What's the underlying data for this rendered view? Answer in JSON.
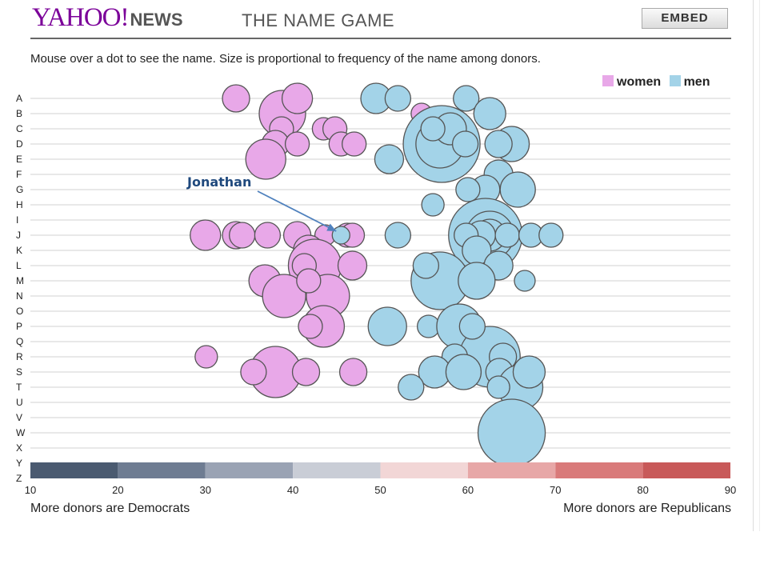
{
  "header": {
    "logo_text": "YAHOO!",
    "logo_section": "NEWS",
    "title": "THE NAME GAME",
    "embed_label": "EMBED"
  },
  "instructions": "Mouse over a dot to see the name. Size is proportional to frequency of the name among donors.",
  "legend": {
    "women": "women",
    "men": "men"
  },
  "footer": {
    "left": "More donors are Democrats",
    "right": "More donors are Republicans"
  },
  "annotation": {
    "label": "Jonathan",
    "target_letter": "J",
    "target_x": 45.5
  },
  "colors": {
    "women": "#e8a8e8",
    "men": "#a3d3e8",
    "stroke": "#555555",
    "grid": "#d0d0d0",
    "arrow": "#4f81bd",
    "annotation_text": "#1f497d",
    "scale": [
      "#4a5a70",
      "#6e7c92",
      "#9aa3b4",
      "#c9cdd6",
      "#f2d6d6",
      "#e7a7a7",
      "#d97a7a",
      "#c85959"
    ]
  },
  "chart_data": {
    "type": "scatter",
    "x_axis": {
      "ticks": [
        10,
        20,
        30,
        40,
        50,
        60,
        70,
        80,
        90
      ],
      "range": [
        10,
        90
      ]
    },
    "y_axis": {
      "letters": [
        "A",
        "B",
        "C",
        "D",
        "E",
        "F",
        "G",
        "H",
        "I",
        "J",
        "K",
        "L",
        "M",
        "N",
        "O",
        "P",
        "Q",
        "R",
        "S",
        "T",
        "U",
        "V",
        "W",
        "X",
        "Y",
        "Z"
      ]
    },
    "series": [
      {
        "name": "women",
        "points": [
          {
            "x": 33.5,
            "y": "A",
            "r": 17
          },
          {
            "x": 38.8,
            "y": "B",
            "r": 29
          },
          {
            "x": 40.5,
            "y": "A",
            "r": 19
          },
          {
            "x": 54.7,
            "y": "B",
            "r": 13
          },
          {
            "x": 38.7,
            "y": "C",
            "r": 15
          },
          {
            "x": 43.5,
            "y": "C",
            "r": 14
          },
          {
            "x": 44.8,
            "y": "C",
            "r": 15
          },
          {
            "x": 38.0,
            "y": "D",
            "r": 17
          },
          {
            "x": 40.5,
            "y": "D",
            "r": 15
          },
          {
            "x": 45.5,
            "y": "D",
            "r": 15
          },
          {
            "x": 47.0,
            "y": "D",
            "r": 15
          },
          {
            "x": 36.9,
            "y": "E",
            "r": 25
          },
          {
            "x": 30.0,
            "y": "J",
            "r": 19
          },
          {
            "x": 33.5,
            "y": "J",
            "r": 17
          },
          {
            "x": 34.2,
            "y": "J",
            "r": 16
          },
          {
            "x": 37.1,
            "y": "J",
            "r": 16
          },
          {
            "x": 40.5,
            "y": "J",
            "r": 17
          },
          {
            "x": 46.2,
            "y": "J",
            "r": 15
          },
          {
            "x": 46.8,
            "y": "J",
            "r": 15
          },
          {
            "x": 43.7,
            "y": "J",
            "r": 13
          },
          {
            "x": 41.8,
            "y": "K",
            "r": 19
          },
          {
            "x": 42.5,
            "y": "L",
            "r": 33
          },
          {
            "x": 41.3,
            "y": "L",
            "r": 15
          },
          {
            "x": 46.8,
            "y": "L",
            "r": 18
          },
          {
            "x": 36.8,
            "y": "M",
            "r": 20
          },
          {
            "x": 39.0,
            "y": "N",
            "r": 27
          },
          {
            "x": 44.0,
            "y": "N",
            "r": 27
          },
          {
            "x": 41.8,
            "y": "M",
            "r": 15
          },
          {
            "x": 43.5,
            "y": "P",
            "r": 26
          },
          {
            "x": 42.0,
            "y": "P",
            "r": 15
          },
          {
            "x": 30.1,
            "y": "R",
            "r": 14
          },
          {
            "x": 38.0,
            "y": "S",
            "r": 32
          },
          {
            "x": 35.5,
            "y": "S",
            "r": 16
          },
          {
            "x": 41.5,
            "y": "S",
            "r": 17
          },
          {
            "x": 46.9,
            "y": "S",
            "r": 17
          }
        ]
      },
      {
        "name": "men",
        "points": [
          {
            "x": 49.5,
            "y": "A",
            "r": 19
          },
          {
            "x": 52.0,
            "y": "A",
            "r": 16
          },
          {
            "x": 59.8,
            "y": "A",
            "r": 16
          },
          {
            "x": 57.0,
            "y": "D",
            "r": 48
          },
          {
            "x": 56.8,
            "y": "D",
            "r": 30
          },
          {
            "x": 58.0,
            "y": "C",
            "r": 20
          },
          {
            "x": 56.0,
            "y": "C",
            "r": 15
          },
          {
            "x": 62.5,
            "y": "B",
            "r": 20
          },
          {
            "x": 65.0,
            "y": "D",
            "r": 22
          },
          {
            "x": 63.5,
            "y": "D",
            "r": 17
          },
          {
            "x": 59.7,
            "y": "D",
            "r": 16
          },
          {
            "x": 51.0,
            "y": "E",
            "r": 18
          },
          {
            "x": 63.5,
            "y": "F",
            "r": 18
          },
          {
            "x": 65.7,
            "y": "G",
            "r": 22
          },
          {
            "x": 62.0,
            "y": "G",
            "r": 18
          },
          {
            "x": 60.0,
            "y": "G",
            "r": 15
          },
          {
            "x": 56.0,
            "y": "H",
            "r": 14
          },
          {
            "x": 62.0,
            "y": "J",
            "r": 46
          },
          {
            "x": 62.5,
            "y": "J",
            "r": 30
          },
          {
            "x": 62.5,
            "y": "J",
            "r": 20
          },
          {
            "x": 61.5,
            "y": "J",
            "r": 18
          },
          {
            "x": 59.8,
            "y": "J",
            "r": 15
          },
          {
            "x": 64.5,
            "y": "J",
            "r": 15
          },
          {
            "x": 67.2,
            "y": "J",
            "r": 15
          },
          {
            "x": 69.5,
            "y": "J",
            "r": 15
          },
          {
            "x": 52.0,
            "y": "J",
            "r": 16
          },
          {
            "x": 45.5,
            "y": "J",
            "r": 11
          },
          {
            "x": 61.0,
            "y": "K",
            "r": 18
          },
          {
            "x": 56.8,
            "y": "M",
            "r": 36
          },
          {
            "x": 55.2,
            "y": "L",
            "r": 16
          },
          {
            "x": 63.5,
            "y": "L",
            "r": 18
          },
          {
            "x": 61.0,
            "y": "M",
            "r": 23
          },
          {
            "x": 66.5,
            "y": "M",
            "r": 13
          },
          {
            "x": 50.8,
            "y": "P",
            "r": 24
          },
          {
            "x": 55.5,
            "y": "P",
            "r": 14
          },
          {
            "x": 59.0,
            "y": "P",
            "r": 28
          },
          {
            "x": 62.5,
            "y": "R",
            "r": 38
          },
          {
            "x": 60.5,
            "y": "P",
            "r": 16
          },
          {
            "x": 64.0,
            "y": "R",
            "r": 17
          },
          {
            "x": 58.5,
            "y": "R",
            "r": 16
          },
          {
            "x": 56.2,
            "y": "S",
            "r": 20
          },
          {
            "x": 59.5,
            "y": "S",
            "r": 22
          },
          {
            "x": 63.6,
            "y": "S",
            "r": 17
          },
          {
            "x": 66.0,
            "y": "T",
            "r": 28
          },
          {
            "x": 67.0,
            "y": "S",
            "r": 20
          },
          {
            "x": 63.5,
            "y": "T",
            "r": 14
          },
          {
            "x": 53.5,
            "y": "T",
            "r": 16
          },
          {
            "x": 65.0,
            "y": "W",
            "r": 42
          }
        ]
      }
    ]
  }
}
